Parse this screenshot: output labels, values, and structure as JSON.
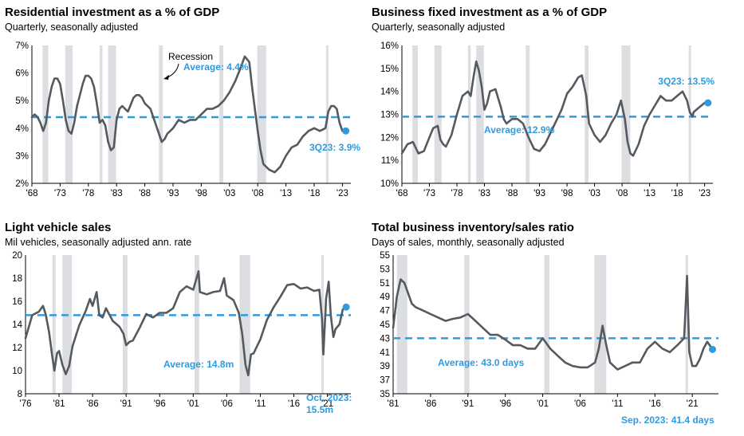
{
  "chart_data": [
    {
      "type": "line",
      "title": "Residential investment as a % of GDP",
      "subtitle": "Quarterly, seasonally adjusted",
      "ylim": [
        2,
        7
      ],
      "yticks": [
        2,
        3,
        4,
        5,
        6,
        7
      ],
      "ytick_labels": [
        "2%",
        "3%",
        "4%",
        "5%",
        "6%",
        "7%"
      ],
      "xlim": [
        1968,
        2024.5
      ],
      "xticks": [
        1968,
        1973,
        1978,
        1983,
        1988,
        1993,
        1998,
        2003,
        2008,
        2013,
        2018,
        2023
      ],
      "xtick_labels": [
        "'68",
        "'73",
        "'78",
        "'83",
        "'88",
        "'93",
        "'98",
        "'03",
        "'08",
        "'13",
        "'18",
        "'23"
      ],
      "recessions": [
        [
          1969.9,
          1970.9
        ],
        [
          1973.9,
          1975.2
        ],
        [
          1980.0,
          1980.5
        ],
        [
          1981.5,
          1982.9
        ],
        [
          1990.5,
          1991.2
        ],
        [
          2001.2,
          2001.9
        ],
        [
          2007.9,
          2009.5
        ],
        [
          2020.1,
          2020.4
        ]
      ],
      "recession_label": "Recession",
      "average": 4.4,
      "average_label": "Average: 4.4%",
      "latest_label": "3Q23: 3.9%",
      "latest": {
        "x": 2023.6,
        "y": 3.9
      },
      "series": [
        {
          "x": [
            1968,
            1968.5,
            1969,
            1969.5,
            1970,
            1970.5,
            1971,
            1971.5,
            1972,
            1972.5,
            1973,
            1973.5,
            1974,
            1974.5,
            1975,
            1975.5,
            1976,
            1976.5,
            1977,
            1977.5,
            1978,
            1978.5,
            1979,
            1979.5,
            1980,
            1980.5,
            1981,
            1981.5,
            1982,
            1982.5,
            1983,
            1983.5,
            1984,
            1985,
            1986,
            1986.5,
            1987,
            1987.5,
            1988,
            1988.5,
            1989,
            1989.5,
            1990,
            1990.5,
            1991,
            1991.5,
            1992,
            1992.5,
            1993,
            1994,
            1995,
            1996,
            1997,
            1998,
            1999,
            2000,
            2001,
            2002,
            2003,
            2004,
            2005,
            2005.7,
            2006.5,
            2007,
            2007.5,
            2008,
            2008.5,
            2009,
            2009.5,
            2010,
            2011,
            2012,
            2013,
            2014,
            2015,
            2016,
            2017,
            2018,
            2019,
            2020,
            2020.5,
            2021,
            2021.5,
            2022,
            2022.5,
            2023,
            2023.6
          ],
          "y": [
            4.4,
            4.5,
            4.4,
            4.2,
            3.9,
            4.2,
            5.0,
            5.5,
            5.8,
            5.8,
            5.6,
            5.0,
            4.3,
            3.9,
            3.8,
            4.2,
            4.8,
            5.2,
            5.6,
            5.9,
            5.9,
            5.8,
            5.5,
            4.9,
            4.2,
            4.3,
            4.1,
            3.5,
            3.2,
            3.3,
            4.3,
            4.7,
            4.8,
            4.6,
            5.1,
            5.2,
            5.2,
            5.1,
            4.9,
            4.8,
            4.7,
            4.4,
            4.1,
            3.8,
            3.5,
            3.6,
            3.8,
            3.9,
            4.0,
            4.3,
            4.2,
            4.3,
            4.3,
            4.5,
            4.7,
            4.7,
            4.8,
            5.0,
            5.3,
            5.7,
            6.2,
            6.6,
            6.4,
            5.5,
            4.7,
            3.9,
            3.2,
            2.7,
            2.6,
            2.5,
            2.4,
            2.6,
            3.0,
            3.3,
            3.4,
            3.7,
            3.9,
            4.0,
            3.9,
            4.0,
            4.6,
            4.8,
            4.8,
            4.7,
            4.2,
            3.9,
            3.9
          ]
        }
      ]
    },
    {
      "type": "line",
      "title": "Business fixed investment as a % of GDP",
      "subtitle": "Quarterly, seasonally adjusted",
      "ylim": [
        10,
        16
      ],
      "yticks": [
        10,
        11,
        12,
        13,
        14,
        15,
        16
      ],
      "ytick_labels": [
        "10%",
        "11%",
        "12%",
        "13%",
        "14%",
        "15%",
        "16%"
      ],
      "xlim": [
        1968,
        2024.5
      ],
      "xticks": [
        1968,
        1973,
        1978,
        1983,
        1988,
        1993,
        1998,
        2003,
        2008,
        2013,
        2018,
        2023
      ],
      "xtick_labels": [
        "'68",
        "'73",
        "'78",
        "'83",
        "'88",
        "'93",
        "'98",
        "'03",
        "'08",
        "'13",
        "'18",
        "'23"
      ],
      "recessions": [
        [
          1969.9,
          1970.9
        ],
        [
          1973.9,
          1975.2
        ],
        [
          1980.0,
          1980.5
        ],
        [
          1981.5,
          1982.9
        ],
        [
          1990.5,
          1991.2
        ],
        [
          2001.2,
          2001.9
        ],
        [
          2007.9,
          2009.5
        ],
        [
          2020.1,
          2020.4
        ]
      ],
      "average": 12.9,
      "average_label": "Average: 12.9%",
      "latest_label": "3Q23: 13.5%",
      "latest": {
        "x": 2023.6,
        "y": 13.5
      },
      "series": [
        {
          "x": [
            1968,
            1969,
            1970,
            1971,
            1972,
            1973,
            1973.7,
            1974.5,
            1975,
            1975.5,
            1976,
            1977,
            1978,
            1979,
            1980,
            1980.5,
            1981,
            1981.5,
            1982,
            1982.5,
            1983,
            1983.5,
            1984,
            1985,
            1986,
            1986.5,
            1987,
            1988,
            1989,
            1990,
            1991,
            1992,
            1993,
            1994,
            1995,
            1996,
            1997,
            1998,
            1999,
            2000,
            2000.7,
            2001.5,
            2002,
            2003,
            2004,
            2005,
            2006,
            2007,
            2007.8,
            2008.5,
            2009,
            2009.5,
            2010,
            2011,
            2012,
            2013,
            2014,
            2015,
            2016,
            2017,
            2018,
            2019,
            2019.8,
            2020.3,
            2020.8,
            2021,
            2022,
            2023,
            2023.6
          ],
          "y": [
            11.3,
            11.7,
            11.8,
            11.3,
            11.4,
            12.0,
            12.4,
            12.5,
            11.9,
            11.7,
            11.6,
            12.1,
            13.0,
            13.8,
            14.0,
            13.8,
            14.6,
            15.3,
            14.9,
            14.2,
            13.2,
            13.5,
            14.0,
            14.1,
            13.3,
            12.8,
            12.6,
            12.8,
            12.8,
            12.6,
            12.0,
            11.5,
            11.4,
            11.7,
            12.2,
            12.7,
            13.2,
            13.9,
            14.2,
            14.6,
            14.7,
            13.8,
            12.6,
            12.1,
            11.8,
            12.1,
            12.6,
            13.0,
            13.6,
            12.8,
            11.8,
            11.3,
            11.2,
            11.7,
            12.5,
            13.0,
            13.4,
            13.8,
            13.6,
            13.6,
            13.8,
            14.0,
            13.6,
            13.1,
            12.9,
            13.1,
            13.3,
            13.5,
            13.5
          ]
        }
      ]
    },
    {
      "type": "line",
      "title": "Light vehicle sales",
      "subtitle": "Mil vehicles, seasonally adjusted ann. rate",
      "ylim": [
        8,
        20
      ],
      "yticks": [
        8,
        10,
        12,
        14,
        16,
        18,
        20
      ],
      "ytick_labels": [
        "8",
        "10",
        "12",
        "14",
        "16",
        "18",
        "20"
      ],
      "xlim": [
        1976,
        2024.5
      ],
      "xticks": [
        1976,
        1981,
        1986,
        1991,
        1996,
        2001,
        2006,
        2011,
        2016,
        2021
      ],
      "xtick_labels": [
        "'76",
        "'81",
        "'86",
        "'91",
        "'96",
        "'01",
        "'06",
        "'11",
        "'16",
        "'21"
      ],
      "recessions": [
        [
          1980.0,
          1980.5
        ],
        [
          1981.5,
          1982.9
        ],
        [
          1990.5,
          1991.2
        ],
        [
          2001.2,
          2001.9
        ],
        [
          2007.9,
          2009.5
        ],
        [
          2020.1,
          2020.4
        ]
      ],
      "average": 14.8,
      "average_label": "Average: 14.8m",
      "latest_label_lines": [
        "Oct. 2023:",
        "15.5m"
      ],
      "latest": {
        "x": 2023.8,
        "y": 15.5
      },
      "series": [
        {
          "x": [
            1976,
            1977,
            1978,
            1978.6,
            1979,
            1979.5,
            1980,
            1980.3,
            1980.7,
            1981,
            1981.5,
            1982,
            1982.5,
            1983,
            1984,
            1985,
            1985.6,
            1986,
            1986.6,
            1987,
            1987.5,
            1988,
            1989,
            1990,
            1990.6,
            1991,
            1991.5,
            1992,
            1993,
            1994,
            1995,
            1996,
            1997,
            1998,
            1999,
            2000,
            2001,
            2001.8,
            2002,
            2003,
            2004,
            2005,
            2005.6,
            2006,
            2007,
            2007.8,
            2008.3,
            2008.8,
            2009.2,
            2009.6,
            2010,
            2011,
            2012,
            2013,
            2014,
            2015,
            2016,
            2017,
            2018,
            2019,
            2019.8,
            2020.2,
            2020.4,
            2020.8,
            2021.2,
            2021.5,
            2021.9,
            2022.2,
            2022.8,
            2023.3,
            2023.8
          ],
          "y": [
            12.8,
            14.8,
            15.1,
            15.6,
            14.9,
            13.4,
            11.2,
            10.0,
            11.5,
            11.7,
            10.5,
            9.7,
            10.4,
            12.1,
            13.9,
            15.2,
            16.2,
            15.6,
            16.8,
            14.8,
            14.6,
            15.4,
            14.3,
            13.8,
            13.2,
            12.2,
            12.5,
            12.6,
            13.7,
            14.9,
            14.6,
            15.0,
            15.0,
            15.4,
            16.8,
            17.3,
            17.0,
            18.6,
            16.8,
            16.6,
            16.8,
            16.9,
            18.0,
            16.5,
            16.1,
            15.0,
            13.2,
            10.5,
            9.6,
            11.4,
            11.5,
            12.7,
            14.4,
            15.5,
            16.4,
            17.4,
            17.5,
            17.1,
            17.2,
            16.9,
            17.0,
            14.5,
            11.4,
            16.2,
            17.7,
            14.8,
            12.9,
            13.6,
            14.0,
            15.3,
            15.5
          ]
        }
      ]
    },
    {
      "type": "line",
      "title": "Total business inventory/sales ratio",
      "subtitle": "Days of sales, monthly, seasonally adjusted",
      "ylim": [
        35,
        55
      ],
      "yticks": [
        35,
        37,
        39,
        41,
        43,
        45,
        47,
        49,
        51,
        53,
        55
      ],
      "ytick_labels": [
        "35",
        "37",
        "39",
        "41",
        "43",
        "45",
        "47",
        "49",
        "51",
        "53",
        "55"
      ],
      "xlim": [
        1981,
        2024.5
      ],
      "xticks": [
        1981,
        1986,
        1991,
        1996,
        2001,
        2006,
        2011,
        2016,
        2021
      ],
      "xtick_labels": [
        "'81",
        "'86",
        "'91",
        "'96",
        "'01",
        "'06",
        "'11",
        "'16",
        "'21"
      ],
      "recessions": [
        [
          1981.5,
          1982.9
        ],
        [
          1990.5,
          1991.2
        ],
        [
          2001.2,
          2001.9
        ],
        [
          2007.9,
          2009.5
        ],
        [
          2020.1,
          2020.4
        ]
      ],
      "average": 43.0,
      "average_label": "Average: 43.0 days",
      "latest_label": "Sep. 2023: 41.4 days",
      "latest": {
        "x": 2023.7,
        "y": 41.4
      },
      "series": [
        {
          "x": [
            1981,
            1981.5,
            1982,
            1982.5,
            1983,
            1983.5,
            1984,
            1985,
            1986,
            1987,
            1988,
            1989,
            1990,
            1991,
            1992,
            1993,
            1994,
            1995,
            1996,
            1997,
            1998,
            1999,
            2000,
            2001,
            2002,
            2003,
            2004,
            2005,
            2006,
            2007,
            2008,
            2008.5,
            2009,
            2009.5,
            2010,
            2011,
            2012,
            2013,
            2014,
            2015,
            2016,
            2017,
            2018,
            2019,
            2019.9,
            2020.3,
            2020.6,
            2021,
            2021.5,
            2022,
            2022.5,
            2023,
            2023.7
          ],
          "y": [
            44.5,
            49.0,
            51.5,
            51.0,
            49.5,
            48.0,
            47.5,
            47.0,
            46.5,
            46.0,
            45.5,
            45.8,
            46.0,
            46.5,
            45.5,
            44.5,
            43.5,
            43.5,
            42.8,
            42.0,
            42.0,
            41.5,
            41.5,
            43.0,
            41.5,
            40.5,
            39.5,
            39.0,
            38.8,
            38.8,
            39.5,
            41.5,
            44.8,
            42.0,
            39.5,
            38.5,
            39.0,
            39.5,
            39.5,
            41.5,
            42.5,
            41.5,
            41.0,
            42.0,
            43.0,
            52.0,
            41.0,
            39.0,
            39.0,
            40.0,
            41.5,
            42.5,
            41.4
          ]
        }
      ]
    }
  ]
}
